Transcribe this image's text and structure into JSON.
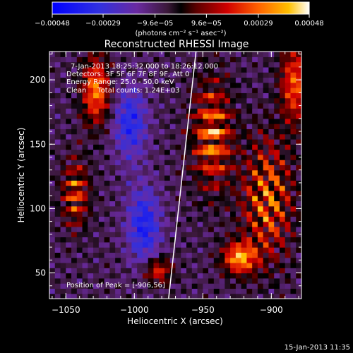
{
  "chart_data": {
    "type": "heatmap",
    "title": "Reconstructed RHESSI Image",
    "xlabel": "Heliocentric X (arcsec)",
    "ylabel": "Heliocentric Y (arcsec)",
    "xlim": [
      -1062,
      -878
    ],
    "ylim": [
      30,
      222
    ],
    "xticks": [
      -1050,
      -1000,
      -950,
      -900
    ],
    "yticks": [
      50,
      100,
      150,
      200
    ],
    "xtick_labels": [
      "−1050",
      "−1000",
      "−950",
      "−900"
    ],
    "ytick_labels": [
      "50",
      "100",
      "150",
      "200"
    ],
    "colorbar": {
      "ticks": [
        -0.00048,
        -0.00029,
        -9.6e-05,
        9.6e-05,
        0.00029,
        0.00048
      ],
      "tick_labels": [
        "−0.00048",
        "−0.00029",
        "−9.6e−05",
        "9.6e−05",
        "0.00029",
        "0.00048"
      ],
      "units": "(photons cm⁻² s⁻¹ asec⁻²)",
      "range": [
        -0.00048,
        0.00048
      ]
    },
    "annotations": [
      "7-Jan-2013 18:25:32.000 to 18:26:12.000",
      "Detectors: 3F 5F 6F 7F 8F 9F, Att 0",
      "Energy Range: 25.0 - 50.0 keV",
      "Clean     Total counts: 1.24E+03"
    ],
    "peak_label": "Position of Peak = [-906,56]",
    "limb_line": [
      [
        -975,
        30
      ],
      [
        -955,
        222
      ]
    ],
    "grid": false
  },
  "footer": {
    "timestamp": "15-Jan-2013 11:35"
  }
}
